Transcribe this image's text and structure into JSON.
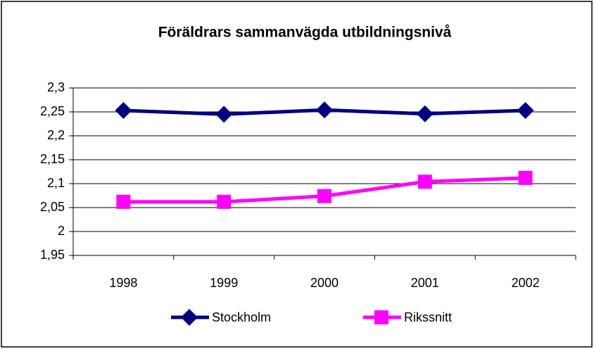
{
  "chart_data": {
    "type": "line",
    "title": "Föräldrars sammanvägda utbildningsnivå",
    "categories": [
      "1998",
      "1999",
      "2000",
      "2001",
      "2002"
    ],
    "series": [
      {
        "name": "Stockholm",
        "color": "#000080",
        "marker": "diamond",
        "values": [
          2.253,
          2.245,
          2.254,
          2.246,
          2.253
        ]
      },
      {
        "name": "Rikssnitt",
        "color": "#ff00ff",
        "marker": "square",
        "values": [
          2.062,
          2.062,
          2.074,
          2.104,
          2.112
        ]
      }
    ],
    "ylim": [
      1.95,
      2.3
    ],
    "yticks": [
      {
        "value": 1.95,
        "label": "1,95"
      },
      {
        "value": 2,
        "label": "2"
      },
      {
        "value": 2.05,
        "label": "2,05"
      },
      {
        "value": 2.1,
        "label": "2,1"
      },
      {
        "value": 2.15,
        "label": "2,15"
      },
      {
        "value": 2.2,
        "label": "2,2"
      },
      {
        "value": 2.25,
        "label": "2,25"
      },
      {
        "value": 2.3,
        "label": "2,3"
      }
    ],
    "grid": true,
    "legend": "bottom"
  }
}
